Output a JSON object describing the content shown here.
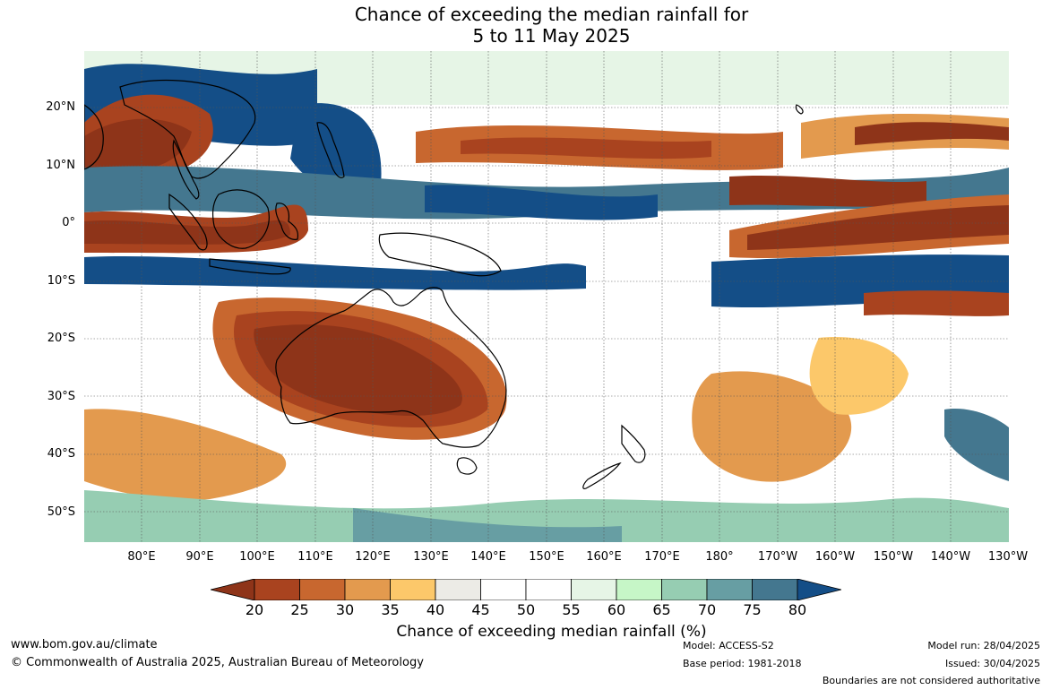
{
  "title": {
    "line1": "Chance of exceeding the median rainfall for",
    "line2": "5 to 11 May 2025"
  },
  "map": {
    "lat_labels": [
      "20°N",
      "10°N",
      "0°",
      "10°S",
      "20°S",
      "30°S",
      "40°S",
      "50°S"
    ],
    "lon_labels": [
      "80°E",
      "90°E",
      "100°E",
      "110°E",
      "120°E",
      "130°E",
      "140°E",
      "150°E",
      "160°E",
      "170°E",
      "180°",
      "170°W",
      "160°W",
      "150°W",
      "140°W",
      "130°W"
    ]
  },
  "colorbar": {
    "label": "Chance of exceeding median rainfall (%)",
    "ticks": [
      "20",
      "25",
      "30",
      "35",
      "40",
      "45",
      "50",
      "55",
      "60",
      "65",
      "70",
      "75",
      "80"
    ],
    "colors": [
      "#8e3419",
      "#a9431f",
      "#c8672f",
      "#e39a4e",
      "#fcc86a",
      "#ecebe6",
      "#ffffff",
      "#ffffff",
      "#e6f5e6",
      "#c6f6c7",
      "#96cdb2",
      "#679ea3",
      "#44778f",
      "#144e87"
    ]
  },
  "footer": {
    "website": "www.bom.gov.au/climate",
    "copyright": "© Commonwealth of Australia 2025, Australian Bureau of Meteorology",
    "model": "Model: ACCESS-S2",
    "base_period": "Base period: 1981-2018",
    "model_run": "Model run: 28/04/2025",
    "issued": "Issued: 30/04/2025",
    "disclaimer": "Boundaries are not considered authoritative"
  }
}
